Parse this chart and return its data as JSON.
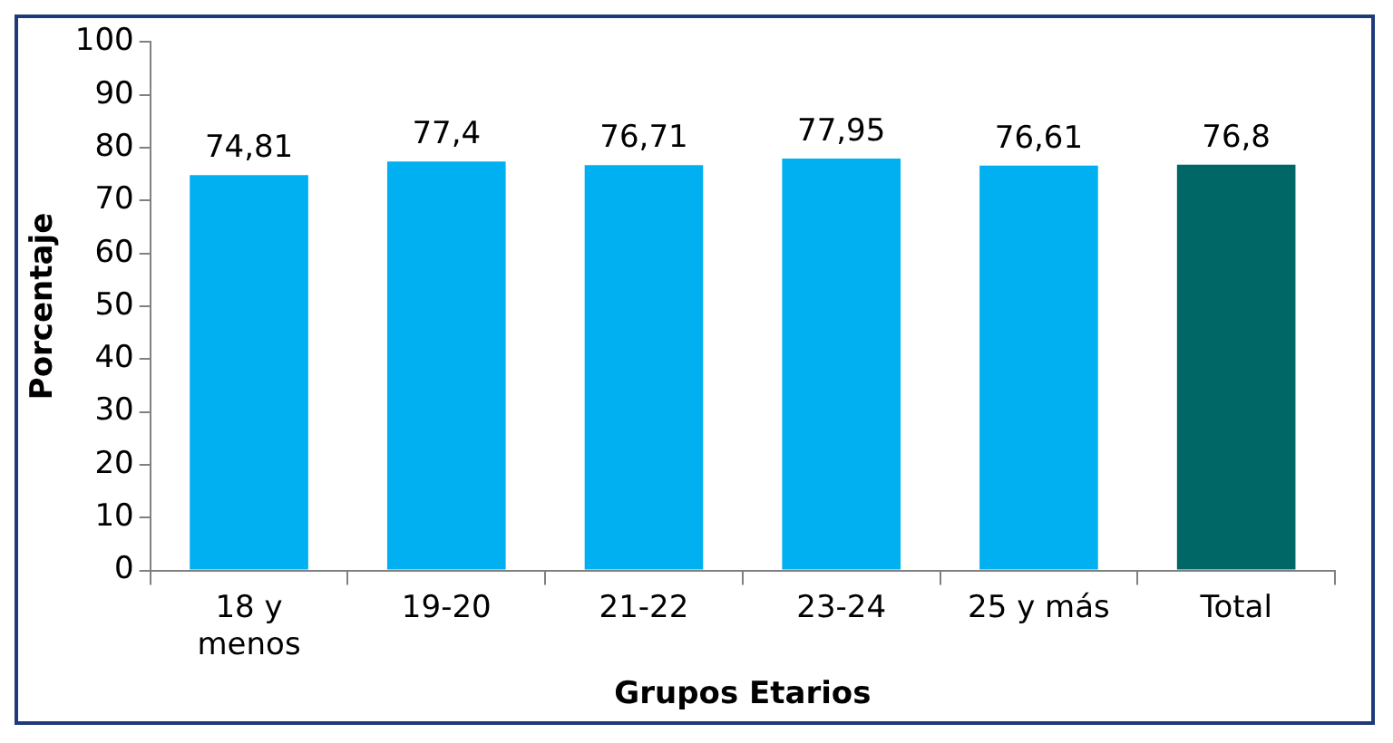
{
  "chart_data": {
    "type": "bar",
    "xlabel": "Grupos Etarios",
    "ylabel": "Porcentaje",
    "categories": [
      "18 y menos",
      "19-20",
      "21-22",
      "23-24",
      "25 y más",
      "Total"
    ],
    "values": [
      74.81,
      77.4,
      76.71,
      77.95,
      76.61,
      76.8
    ],
    "colors": [
      "#00b0f0",
      "#00b0f0",
      "#00b0f0",
      "#00b0f0",
      "#00b0f0",
      "#006666"
    ],
    "value_labels": [
      "74,81",
      "77,4",
      "76,71",
      "77,95",
      "76,61",
      "76,8"
    ],
    "ylim": [
      0,
      100
    ],
    "yticks": [
      0,
      10,
      20,
      30,
      40,
      50,
      60,
      70,
      80,
      90,
      100
    ],
    "grid": false,
    "legend": false
  }
}
